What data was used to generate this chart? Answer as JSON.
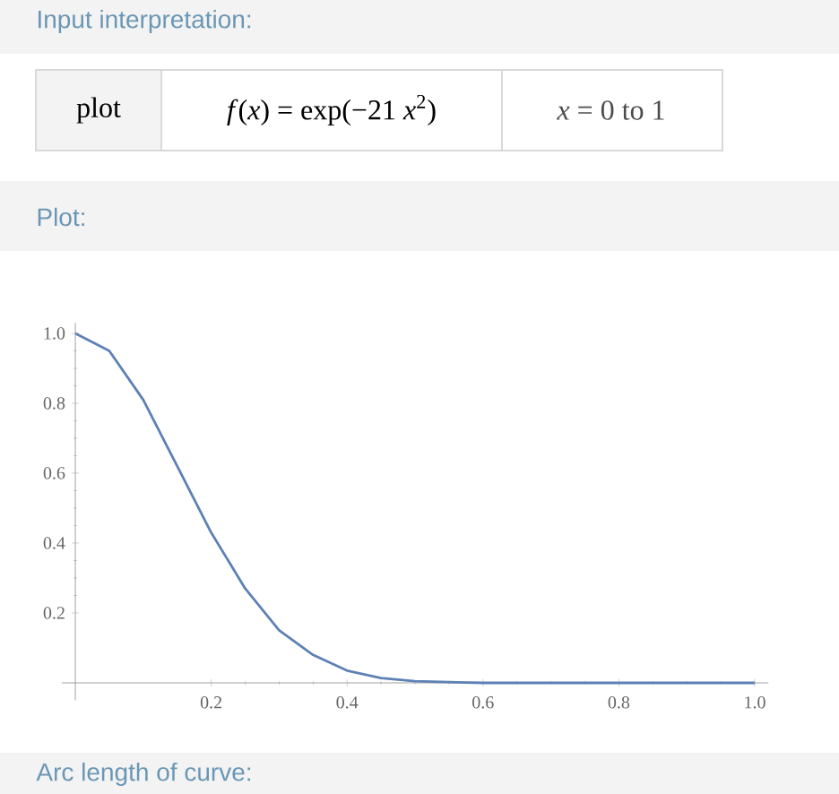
{
  "chart_data": {
    "type": "line",
    "x": [
      0,
      0.05,
      0.1,
      0.15,
      0.2,
      0.25,
      0.3,
      0.35,
      0.4,
      0.45,
      0.5,
      0.55,
      0.6,
      0.7,
      0.8,
      0.9,
      1.0
    ],
    "values": [
      1.0,
      0.95,
      0.81,
      0.62,
      0.43,
      0.27,
      0.15,
      0.08,
      0.035,
      0.014,
      0.005,
      0.002,
      0,
      0,
      0,
      0,
      0
    ],
    "color": "#5e81b5",
    "xlim": [
      -0.02,
      1.02
    ],
    "ylim": [
      -0.05,
      1.03
    ],
    "xticks": [
      0.2,
      0.4,
      0.6,
      0.8,
      {
        "value": 1.0,
        "label": "1.0"
      }
    ],
    "yticks": [
      0.2,
      0.4,
      0.6,
      0.8,
      {
        "value": 1.0,
        "label": "1.0"
      }
    ],
    "annotations": [
      "Input interpretation:",
      "plot",
      "*f*(*x*) = exp(−21 *x*$^{2}$)",
      "*x* = 0 to 1",
      "Plot:",
      "Arc length of curve:"
    ]
  }
}
